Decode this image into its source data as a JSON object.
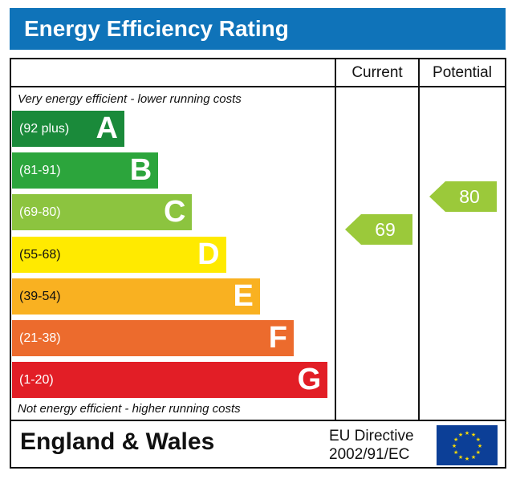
{
  "title": "Energy Efficiency Rating",
  "columns": {
    "current": "Current",
    "potential": "Potential"
  },
  "top_note": "Very energy efficient - lower running costs",
  "bottom_note": "Not energy efficient - higher running costs",
  "footer": {
    "region": "England & Wales",
    "directive_line1": "EU Directive",
    "directive_line2": "2002/91/EC",
    "flag": "eu-flag-icon"
  },
  "chart_data": {
    "type": "bar",
    "title": "Energy Efficiency Rating",
    "bands": [
      {
        "letter": "A",
        "range": "(92 plus)",
        "color": "#1a8a3a"
      },
      {
        "letter": "B",
        "range": "(81-91)",
        "color": "#2ca53c"
      },
      {
        "letter": "C",
        "range": "(69-80)",
        "color": "#8cc43f"
      },
      {
        "letter": "D",
        "range": "(55-68)",
        "color": "#ffea00"
      },
      {
        "letter": "E",
        "range": "(39-54)",
        "color": "#f9b121"
      },
      {
        "letter": "F",
        "range": "(21-38)",
        "color": "#ec6b2d"
      },
      {
        "letter": "G",
        "range": "(1-20)",
        "color": "#e21e26"
      }
    ],
    "current": {
      "value": "69",
      "band": "C",
      "color": "#9bc93a"
    },
    "potential": {
      "value": "80",
      "band": "C",
      "color": "#9bc93a"
    }
  }
}
